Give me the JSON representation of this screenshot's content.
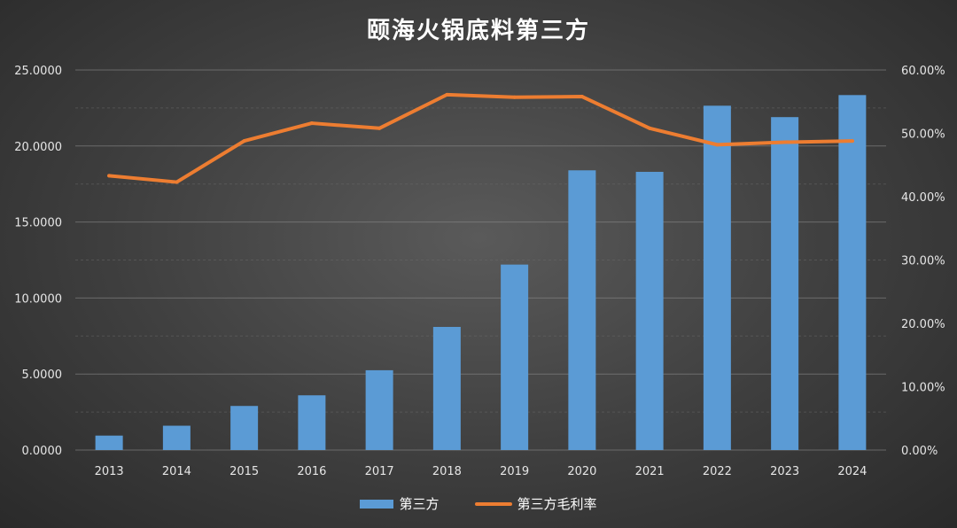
{
  "chart_data": {
    "type": "bar",
    "title": "颐海火锅底料第三方",
    "categories": [
      "2013",
      "2014",
      "2015",
      "2016",
      "2017",
      "2018",
      "2019",
      "2020",
      "2021",
      "2022",
      "2023",
      "2024"
    ],
    "series": [
      {
        "name": "第三方",
        "type": "bar",
        "axis": "left",
        "values": [
          0.95,
          1.6,
          2.9,
          3.6,
          5.25,
          8.1,
          12.2,
          18.4,
          18.3,
          22.65,
          21.9,
          23.35
        ]
      },
      {
        "name": "第三方毛利率",
        "type": "line",
        "axis": "right",
        "values": [
          43.3,
          42.3,
          48.8,
          51.6,
          50.8,
          56.1,
          55.7,
          55.8,
          50.8,
          48.2,
          48.6,
          48.8
        ]
      }
    ],
    "y_left": {
      "ticks": [
        "0.0000",
        "5.0000",
        "10.0000",
        "15.0000",
        "20.0000",
        "25.0000"
      ],
      "min": 0,
      "max": 25
    },
    "y_right": {
      "ticks": [
        "0.00%",
        "10.00%",
        "20.00%",
        "30.00%",
        "40.00%",
        "50.00%",
        "60.00%"
      ],
      "min": 0,
      "max": 60
    },
    "grid": true,
    "legend": "bottom",
    "colors": {
      "bar": "#5b9bd5",
      "line": "#ed7d31"
    }
  }
}
